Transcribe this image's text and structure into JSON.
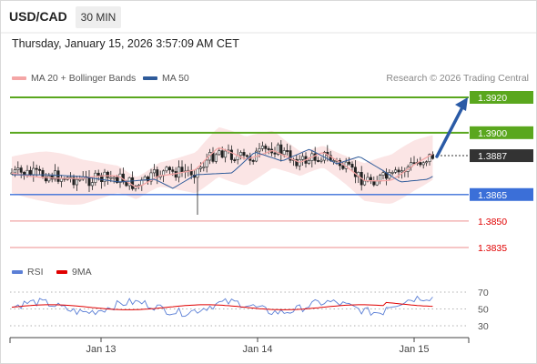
{
  "header": {
    "pair": "USD/CAD",
    "timeframe": "30 MIN",
    "datetime": "Thursday, January 15, 2026 3:57:09 AM CET"
  },
  "legend": {
    "ma20_bb": "MA 20 + Bollinger Bands",
    "ma50": "MA 50",
    "credit": "Research © 2026 Trading Central",
    "rsi": "RSI",
    "ma9": "9MA"
  },
  "colors": {
    "ma20_bb": "#f4a6a6",
    "ma50": "#2f5b9a",
    "rsi": "#5b7fd6",
    "ma9": "#e00000",
    "resistance": "#5aa71e",
    "support": "#3b6fd8",
    "target": "#2a5aa6",
    "candle_up": "#ffffff",
    "candle_down": "#222222"
  },
  "chart_data": {
    "type": "candlestick",
    "current_price": "1.3887",
    "levels": [
      {
        "value": "1.3920",
        "style": "resistance"
      },
      {
        "value": "1.3900",
        "style": "resistance"
      },
      {
        "value": "1.3865",
        "style": "pivot"
      },
      {
        "value": "1.3850",
        "style": "support"
      },
      {
        "value": "1.3835",
        "style": "support"
      }
    ],
    "x_ticks": [
      "Jan 13",
      "Jan 14",
      "Jan 15"
    ],
    "rsi_ticks": [
      "70",
      "50",
      "30"
    ],
    "target_direction": "up"
  }
}
